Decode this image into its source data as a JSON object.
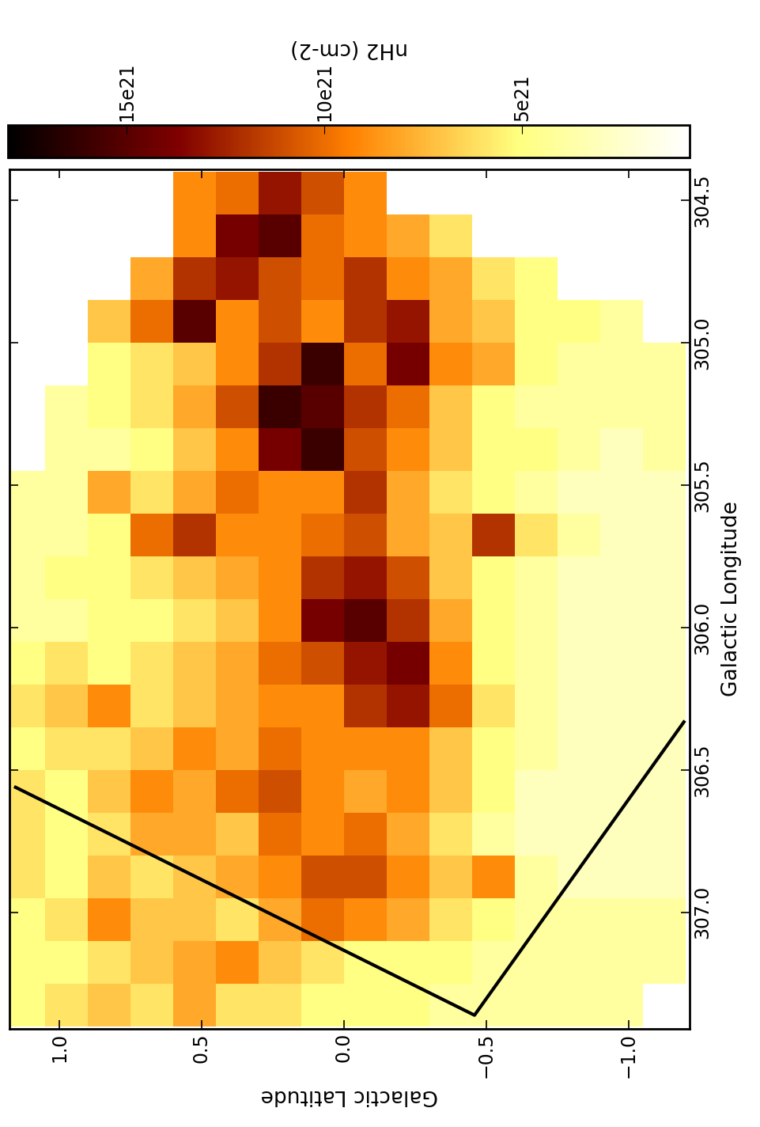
{
  "chart_data": {
    "type": "heatmap",
    "x_label": "Galactic Latitude",
    "y_label": "Galactic Longitude",
    "xlim": [
      1.175,
      -1.214
    ],
    "ylim": [
      307.41,
      304.39
    ],
    "xticks": [
      {
        "value": 1.0,
        "label": "1.0"
      },
      0.5,
      {
        "value": 0.0,
        "label": "0.0"
      },
      {
        "value": -0.5,
        "label": "−0.5"
      },
      {
        "value": -1.0,
        "label": "−1.0"
      }
    ],
    "yticks": [
      304.5,
      {
        "value": 305.0,
        "label": "305.0"
      },
      305.5,
      {
        "value": 306.0,
        "label": "306.0"
      },
      306.5,
      {
        "value": 307.0,
        "label": "307.0"
      }
    ],
    "color": "afmhot_r",
    "x_edges": [
      1.2,
      1.05,
      0.9,
      0.75,
      0.6,
      0.45,
      0.3,
      0.15,
      0.0,
      -0.15,
      -0.3,
      -0.45,
      -0.6,
      -0.75,
      -0.9,
      -1.05,
      -1.2
    ],
    "y_edges": [
      304.4,
      304.55,
      304.7,
      304.85,
      305.0,
      305.15,
      305.3,
      305.45,
      305.6,
      305.75,
      305.9,
      306.05,
      306.2,
      306.35,
      306.5,
      306.65,
      306.8,
      306.95,
      307.1,
      307.25,
      307.4
    ],
    "cells": [
      [
        null,
        null,
        null,
        null,
        9e+21,
        1e+22,
        1.3e+22,
        1.1e+22,
        9e+21,
        null,
        null,
        null,
        null,
        null,
        null,
        null
      ],
      [
        null,
        null,
        null,
        null,
        9e+21,
        1.4e+22,
        1.5e+22,
        1e+22,
        9e+21,
        8e+21,
        6e+21,
        null,
        null,
        null,
        null,
        null
      ],
      [
        null,
        null,
        null,
        8e+21,
        1.2e+22,
        1.3e+22,
        1.1e+22,
        1e+22,
        1.2e+22,
        9e+21,
        8e+21,
        6e+21,
        5e+21,
        null,
        null,
        null
      ],
      [
        null,
        null,
        7e+21,
        1e+22,
        1.5e+22,
        9e+21,
        1.1e+22,
        9e+21,
        1.2e+22,
        1.3e+22,
        8e+21,
        7e+21,
        5e+21,
        5e+21,
        4e+21,
        null
      ],
      [
        null,
        null,
        5e+21,
        6e+21,
        7e+21,
        9e+21,
        1.2e+22,
        1.6e+22,
        1e+22,
        1.4e+22,
        9e+21,
        8e+21,
        5e+21,
        4e+21,
        4e+21,
        4e+21
      ],
      [
        null,
        4e+21,
        5e+21,
        6e+21,
        8e+21,
        1.1e+22,
        1.6e+22,
        1.5e+22,
        1.2e+22,
        1e+22,
        7e+21,
        5e+21,
        4e+21,
        4e+21,
        4e+21,
        4e+21
      ],
      [
        null,
        4e+21,
        4e+21,
        5e+21,
        7e+21,
        9e+21,
        1.4e+22,
        1.6e+22,
        1.1e+22,
        9e+21,
        7e+21,
        5e+21,
        5e+21,
        4e+21,
        3e+21,
        4e+21
      ],
      [
        4e+21,
        4e+21,
        8e+21,
        6e+21,
        8e+21,
        1e+22,
        9e+21,
        9e+21,
        1.2e+22,
        8e+21,
        6e+21,
        5e+21,
        4e+21,
        3e+21,
        3e+21,
        3e+21
      ],
      [
        4e+21,
        4e+21,
        5e+21,
        1e+22,
        1.2e+22,
        9e+21,
        9e+21,
        1e+22,
        1.1e+22,
        8e+21,
        7e+21,
        1.2e+22,
        6e+21,
        4e+21,
        3e+21,
        3e+21
      ],
      [
        4e+21,
        5e+21,
        5e+21,
        6e+21,
        7e+21,
        8e+21,
        9e+21,
        1.2e+22,
        1.3e+22,
        1.1e+22,
        7e+21,
        5e+21,
        4e+21,
        3e+21,
        3e+21,
        3e+21
      ],
      [
        4e+21,
        4e+21,
        5e+21,
        5e+21,
        6e+21,
        7e+21,
        9e+21,
        1.4e+22,
        1.5e+22,
        1.2e+22,
        8e+21,
        5e+21,
        4e+21,
        3e+21,
        3e+21,
        3e+21
      ],
      [
        5e+21,
        6e+21,
        5e+21,
        6e+21,
        7e+21,
        8e+21,
        1e+22,
        1.1e+22,
        1.3e+22,
        1.4e+22,
        9e+21,
        5e+21,
        4e+21,
        3e+21,
        3e+21,
        3e+21
      ],
      [
        6e+21,
        7e+21,
        9e+21,
        6e+21,
        7e+21,
        8e+21,
        9e+21,
        9e+21,
        1.2e+22,
        1.3e+22,
        1e+22,
        6e+21,
        4e+21,
        3e+21,
        3e+21,
        3e+21
      ],
      [
        5e+21,
        6e+21,
        6e+21,
        7e+21,
        9e+21,
        8e+21,
        1e+22,
        9e+21,
        9e+21,
        9e+21,
        7e+21,
        5e+21,
        4e+21,
        3e+21,
        3e+21,
        3e+21
      ],
      [
        6e+21,
        5e+21,
        7e+21,
        9e+21,
        8e+21,
        1e+22,
        1.1e+22,
        9e+21,
        8e+21,
        9e+21,
        7e+21,
        5e+21,
        3e+21,
        3e+21,
        3e+21,
        3e+21
      ],
      [
        6e+21,
        5e+21,
        6e+21,
        8e+21,
        8e+21,
        7e+21,
        1e+22,
        9e+21,
        1e+22,
        8e+21,
        6e+21,
        4e+21,
        3e+21,
        3e+21,
        3e+21,
        3e+21
      ],
      [
        6e+21,
        5e+21,
        7e+21,
        6e+21,
        7e+21,
        8e+21,
        9e+21,
        1.1e+22,
        1.1e+22,
        9e+21,
        7e+21,
        9e+21,
        4e+21,
        3e+21,
        3e+21,
        3e+21
      ],
      [
        5e+21,
        6e+21,
        9e+21,
        7e+21,
        7e+21,
        6e+21,
        8e+21,
        1e+22,
        9e+21,
        8e+21,
        6e+21,
        5e+21,
        4e+21,
        4e+21,
        4e+21,
        4e+21
      ],
      [
        5e+21,
        5e+21,
        6e+21,
        7e+21,
        8e+21,
        9e+21,
        7e+21,
        6e+21,
        5e+21,
        5e+21,
        5e+21,
        4e+21,
        4e+21,
        4e+21,
        4e+21,
        4e+21
      ],
      [
        5e+21,
        6e+21,
        7e+21,
        6e+21,
        8e+21,
        6e+21,
        6e+21,
        5e+21,
        5e+21,
        5e+21,
        4e+21,
        4e+21,
        4e+21,
        4e+21,
        4e+21,
        null
      ]
    ],
    "colorbar": {
      "label": "nH2 (cm-2)",
      "range": [
        7.6e+20,
        1.8e+22
      ],
      "ticks": [
        {
          "value": 1.5e+22,
          "label": "15e21"
        },
        {
          "value": 1e+22,
          "label": "10e21"
        },
        {
          "value": 5e+21,
          "label": "5e21"
        }
      ]
    }
  }
}
